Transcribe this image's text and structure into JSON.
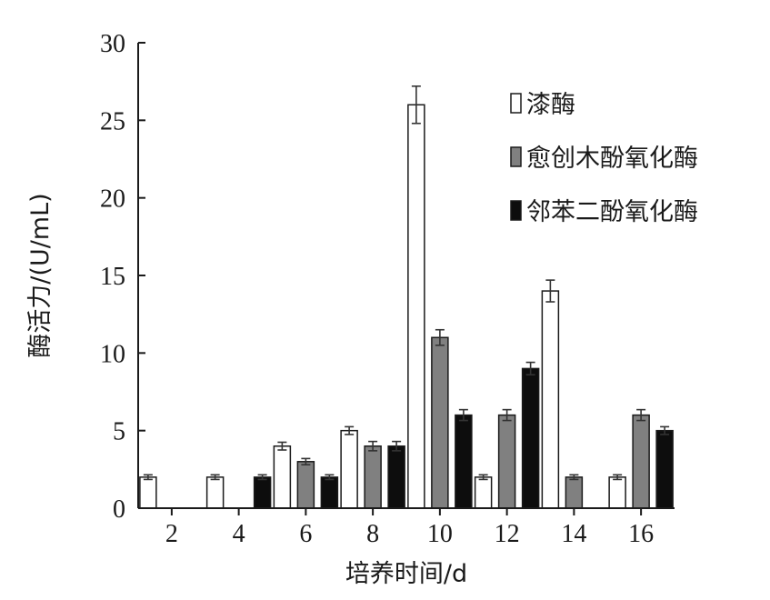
{
  "chart_data": {
    "type": "bar",
    "title": "",
    "xlabel": "培养时间/d",
    "ylabel": "酶活力/(U/mL)",
    "categories": [
      "2",
      "4",
      "6",
      "8",
      "10",
      "12",
      "14",
      "16"
    ],
    "ylim": [
      0,
      30
    ],
    "yticks": [
      "0",
      "5",
      "10",
      "15",
      "20",
      "25",
      "30"
    ],
    "grid": false,
    "legend_position": "top-right",
    "series": [
      {
        "name": "漆酶",
        "color": "#ffffff",
        "values": [
          2,
          2,
          4,
          5,
          26,
          2,
          14,
          2
        ],
        "errors": [
          0.15,
          0.15,
          0.25,
          0.25,
          1.2,
          0.15,
          0.7,
          0.15
        ]
      },
      {
        "name": "愈创木酚氧化酶",
        "color": "#808080",
        "values": [
          null,
          null,
          3,
          4,
          11,
          6,
          2,
          6
        ],
        "errors": [
          0,
          0,
          0.2,
          0.3,
          0.5,
          0.35,
          0.15,
          0.35
        ]
      },
      {
        "name": "邻苯二酚氧化酶",
        "color": "#0d0d0d",
        "values": [
          null,
          2,
          2,
          4,
          6,
          9,
          null,
          5
        ],
        "errors": [
          0,
          0.15,
          0.15,
          0.3,
          0.35,
          0.4,
          0,
          0.25
        ]
      }
    ]
  }
}
